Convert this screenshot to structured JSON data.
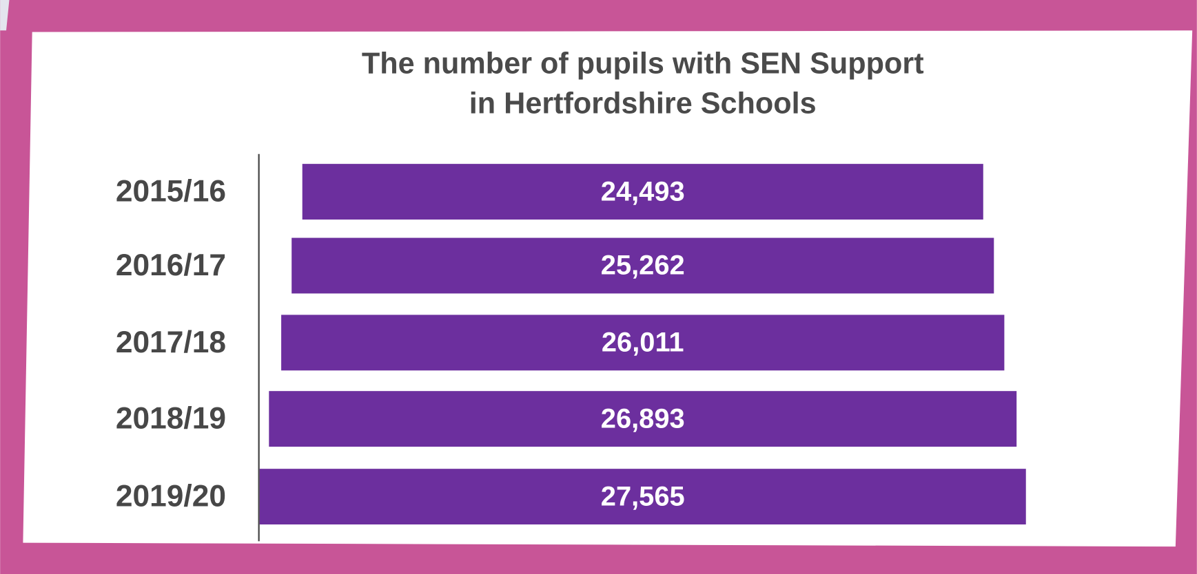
{
  "chart_data": {
    "type": "centered-bar",
    "title": [
      "The number of pupils with SEN Support",
      "in Hertfordshire Schools"
    ],
    "categories": [
      "2015/16",
      "2016/17",
      "2017/18",
      "2018/19",
      "2019/20"
    ],
    "values": [
      24493,
      25262,
      26011,
      26893,
      27565
    ],
    "value_labels": [
      "24,493",
      "25,262",
      "26,011",
      "26,893",
      "27,565"
    ],
    "color": "#6c2f9e"
  }
}
